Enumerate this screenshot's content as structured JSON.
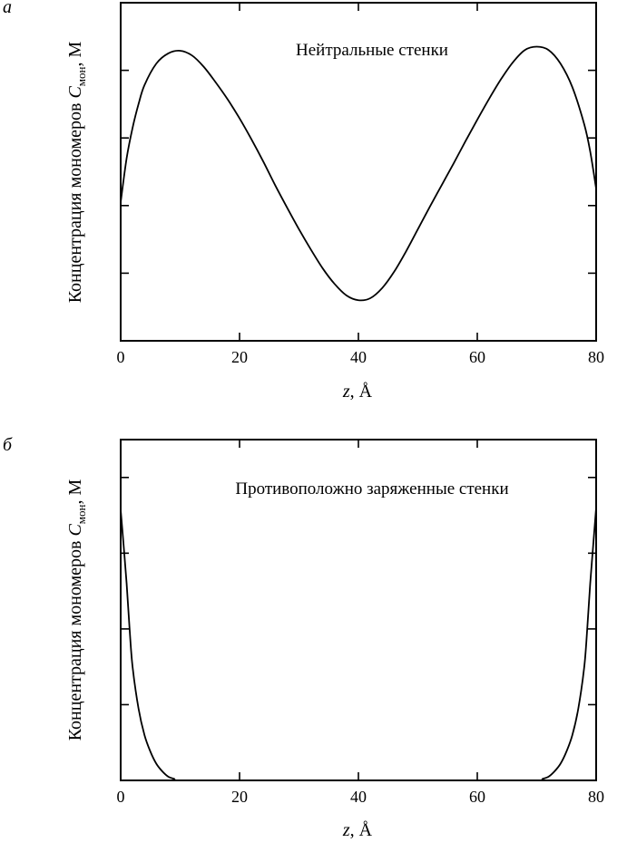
{
  "chart_data": [
    {
      "type": "line",
      "panel_label": "а",
      "annotation": "Нейтральные стенки",
      "xlabel": {
        "var": "z",
        "rest": ", Å"
      },
      "ylabel": {
        "text": "Концентрация мономеров ",
        "var": "C",
        "sub": "мон",
        "unit": ", М"
      },
      "xlim": [
        0,
        80
      ],
      "ylim": [
        0,
        5
      ],
      "xticks": [
        0,
        20,
        40,
        60,
        80
      ],
      "yticks": [
        1,
        2,
        3,
        4
      ],
      "ytick_labels_shown": false,
      "grid": false,
      "series": [
        {
          "name": "Нейтральные стенки",
          "x": [
            0,
            1,
            2,
            3,
            4,
            6,
            8,
            10,
            12,
            14,
            16,
            18,
            20,
            22,
            24,
            26,
            28,
            30,
            32,
            34,
            36,
            38,
            40,
            42,
            44,
            46,
            48,
            50,
            52,
            54,
            56,
            58,
            60,
            62,
            64,
            66,
            68,
            70,
            72,
            74,
            76,
            78,
            79,
            80
          ],
          "y": [
            2.05,
            2.7,
            3.15,
            3.5,
            3.78,
            4.1,
            4.25,
            4.29,
            4.22,
            4.05,
            3.82,
            3.57,
            3.29,
            2.98,
            2.65,
            2.3,
            1.97,
            1.65,
            1.35,
            1.07,
            0.84,
            0.67,
            0.6,
            0.63,
            0.78,
            1.02,
            1.32,
            1.65,
            1.98,
            2.3,
            2.62,
            2.95,
            3.27,
            3.58,
            3.87,
            4.12,
            4.3,
            4.35,
            4.3,
            4.1,
            3.75,
            3.2,
            2.8,
            2.25
          ]
        }
      ]
    },
    {
      "type": "line",
      "panel_label": "б",
      "annotation": "Противоположно заряженные стенки",
      "xlabel": {
        "var": "z",
        "rest": ", Å"
      },
      "ylabel": {
        "text": "Концентрация мономеров ",
        "var": "C",
        "sub": "мон",
        "unit": ", М"
      },
      "xlim": [
        0,
        80
      ],
      "ylim": [
        0,
        4.5
      ],
      "xticks": [
        0,
        20,
        40,
        60,
        80
      ],
      "yticks": [
        1,
        2,
        3,
        4
      ],
      "ytick_labels_shown": false,
      "grid": false,
      "series": [
        {
          "name": "Противоположно заряженные стенки",
          "x": [
            0,
            0.5,
            1,
            1.5,
            2,
            3,
            4,
            5,
            6,
            7,
            8,
            9,
            10,
            20,
            40,
            60,
            70,
            71,
            72,
            73,
            74,
            75,
            76,
            77,
            78,
            78.5,
            79,
            79.5,
            80
          ],
          "y": [
            3.57,
            3.1,
            2.6,
            2.0,
            1.5,
            0.95,
            0.6,
            0.38,
            0.22,
            0.12,
            0.05,
            0.02,
            0,
            0,
            0,
            0,
            0,
            0.02,
            0.05,
            0.12,
            0.22,
            0.38,
            0.6,
            0.95,
            1.5,
            2.0,
            2.6,
            3.1,
            3.6
          ]
        }
      ]
    }
  ]
}
